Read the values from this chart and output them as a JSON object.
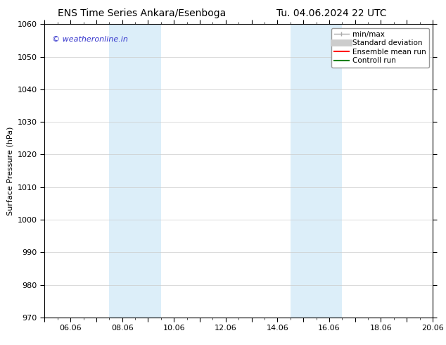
{
  "title_left": "ENS Time Series Ankara/Esenboga",
  "title_right": "Tu. 04.06.2024 22 UTC",
  "ylabel": "Surface Pressure (hPa)",
  "ylim": [
    970,
    1060
  ],
  "yticks": [
    970,
    980,
    990,
    1000,
    1010,
    1020,
    1030,
    1040,
    1050,
    1060
  ],
  "xtick_labels": [
    "06.06",
    "08.06",
    "10.06",
    "12.06",
    "14.06",
    "16.06",
    "18.06",
    "20.06"
  ],
  "xtick_positions": [
    1,
    3,
    5,
    7,
    9,
    11,
    13,
    15
  ],
  "shaded_bands": [
    {
      "x_start": 2.5,
      "x_end": 4.5
    },
    {
      "x_start": 9.5,
      "x_end": 11.5
    }
  ],
  "band_color": "#dceef9",
  "watermark_text": "© weatheronline.in",
  "watermark_color": "#3333cc",
  "legend_items": [
    {
      "label": "min/max",
      "color": "#aaaaaa",
      "lw": 1.0
    },
    {
      "label": "Standard deviation",
      "color": "#cccccc",
      "lw": 6
    },
    {
      "label": "Ensemble mean run",
      "color": "#ff0000",
      "lw": 1.5
    },
    {
      "label": "Controll run",
      "color": "#008000",
      "lw": 1.5
    }
  ],
  "bg_color": "#ffffff",
  "grid_color": "#cccccc",
  "font_color": "#000000",
  "title_fontsize": 10,
  "tick_fontsize": 8,
  "ylabel_fontsize": 8,
  "legend_fontsize": 7.5
}
